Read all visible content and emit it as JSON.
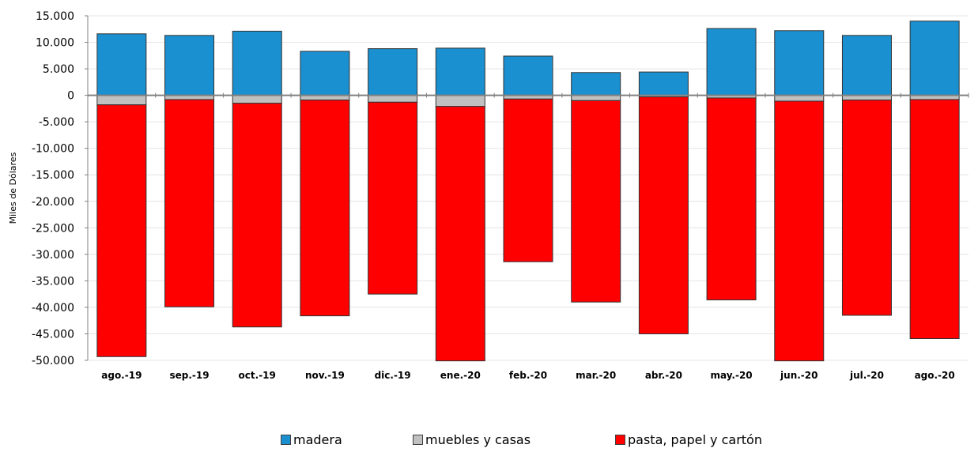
{
  "chart_data": {
    "type": "bar",
    "stacked": true,
    "title": "",
    "xlabel": "",
    "ylabel": "Miles de Dólares",
    "ylim": [
      -50000,
      15000
    ],
    "yticks": [
      15000,
      10000,
      5000,
      0,
      -5000,
      -10000,
      -15000,
      -20000,
      -25000,
      -30000,
      -35000,
      -40000,
      -45000,
      -50000
    ],
    "ytick_labels": [
      "15.000",
      "10.000",
      "5.000",
      "0",
      "-5.000",
      "-10.000",
      "-15.000",
      "-20.000",
      "-25.000",
      "-30.000",
      "-35.000",
      "-40.000",
      "-45.000",
      "-50.000"
    ],
    "grid": true,
    "legend_position": "bottom",
    "categories": [
      "ago.-19",
      "sep.-19",
      "oct.-19",
      "nov.-19",
      "dic.-19",
      "ene.-20",
      "feb.-20",
      "mar.-20",
      "abr.-20",
      "may.-20",
      "jun.-20",
      "jul.-20",
      "ago.-20"
    ],
    "series": [
      {
        "name": "madera",
        "color": "#1a90d0",
        "values": [
          11600,
          11300,
          12100,
          8300,
          8800,
          8900,
          7400,
          4300,
          4400,
          12600,
          12200,
          11300,
          14000
        ]
      },
      {
        "name": "muebles y casas",
        "color": "#c0c0c0",
        "values": [
          -1800,
          -800,
          -1500,
          -900,
          -1300,
          -2100,
          -700,
          -1000,
          -300,
          -500,
          -1100,
          -900,
          -800
        ]
      },
      {
        "name": "pasta, papel y cartón",
        "color": "#ff0000",
        "values": [
          -47500,
          -39100,
          -42200,
          -40700,
          -36200,
          -48000,
          -30700,
          -38000,
          -44700,
          -38100,
          -49000,
          -40600,
          -45100
        ]
      }
    ]
  }
}
